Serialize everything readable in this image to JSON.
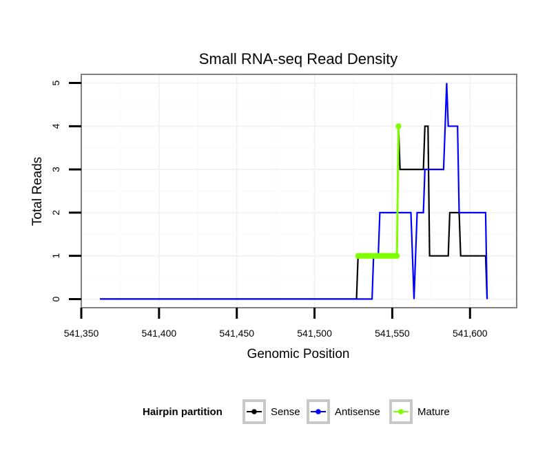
{
  "chart_data": {
    "type": "line",
    "title": "Small RNA-seq Read Density",
    "xlabel": "Genomic Position",
    "ylabel": "Total Reads",
    "xlim": [
      541350,
      541630
    ],
    "ylim": [
      -0.2,
      5.2
    ],
    "xticks": [
      541350,
      541400,
      541450,
      541500,
      541550,
      541600
    ],
    "xtick_labels": [
      "541,350",
      "541,400",
      "541,450",
      "541,500",
      "541,550",
      "541,600"
    ],
    "yticks": [
      0,
      1,
      2,
      3,
      4,
      5
    ],
    "ytick_labels": [
      "0",
      "1",
      "2",
      "3",
      "4",
      "5"
    ],
    "grid": true,
    "legend": {
      "title": "Hairpin partition",
      "placement": "bottom"
    },
    "series": [
      {
        "name": "Sense",
        "color": "#000000",
        "marker": false,
        "x": [
          541362,
          541527,
          541528,
          541553,
          541554,
          541555,
          541570,
          541571,
          541573,
          541574,
          541586,
          541587,
          541593,
          541594,
          541610,
          541611
        ],
        "y": [
          0,
          0,
          1,
          1,
          4,
          3,
          3,
          4,
          4,
          1,
          1,
          2,
          2,
          1,
          1,
          0
        ]
      },
      {
        "name": "Antisense",
        "color": "#0000ff",
        "marker": false,
        "x": [
          541362,
          541537,
          541538,
          541541,
          541542,
          541562,
          541564,
          541566,
          541570,
          541571,
          541583,
          541584,
          541585,
          541586,
          541592,
          541593,
          541610,
          541611
        ],
        "y": [
          0,
          0,
          1,
          1,
          2,
          2,
          0,
          2,
          2,
          3,
          3,
          4,
          5,
          4,
          4,
          2,
          2,
          0
        ]
      },
      {
        "name": "Mature",
        "color": "#7fff00",
        "marker": true,
        "x": [
          541528,
          541529,
          541530,
          541531,
          541532,
          541533,
          541534,
          541535,
          541536,
          541537,
          541538,
          541539,
          541540,
          541541,
          541542,
          541543,
          541544,
          541545,
          541546,
          541547,
          541548,
          541549,
          541550,
          541551,
          541552,
          541553,
          541554
        ],
        "y": [
          1,
          1,
          1,
          1,
          1,
          1,
          1,
          1,
          1,
          1,
          1,
          1,
          1,
          1,
          1,
          1,
          1,
          1,
          1,
          1,
          1,
          1,
          1,
          1,
          1,
          1,
          4
        ]
      }
    ]
  }
}
